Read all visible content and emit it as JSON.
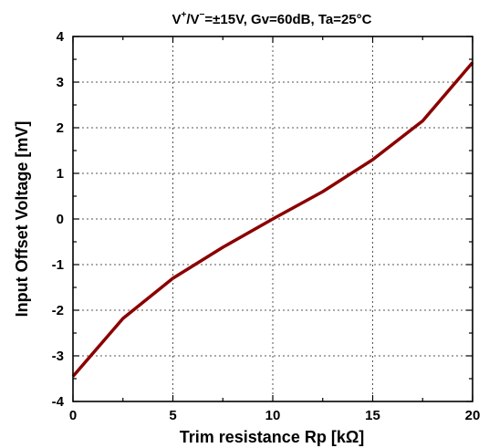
{
  "chart_data": {
    "type": "line",
    "title": {
      "prefix": "V",
      "sup1": "+",
      "middle": "/V",
      "sup2": "−",
      "rest": "=±15V, Gv=60dB, Ta=25°C"
    },
    "xlabel": "Trim resistance Rp [kΩ]",
    "ylabel": "Input Offset Voltage [mV]",
    "xlim": [
      0,
      20
    ],
    "ylim": [
      -4,
      4
    ],
    "x_ticks": [
      0,
      5,
      10,
      15,
      20
    ],
    "x_tick_labels": [
      "0",
      "5",
      "10",
      "15",
      "20"
    ],
    "y_ticks": [
      -4,
      -3,
      -2,
      -1,
      0,
      1,
      2,
      3,
      4
    ],
    "y_tick_labels": [
      "-4",
      "-3",
      "-2",
      "-1",
      "0",
      "1",
      "2",
      "3",
      "4"
    ],
    "x_minor_step": 2.5,
    "y_minor_step": 0.5,
    "grid": true,
    "grid_style": "dotted",
    "series": [
      {
        "color": "#8b0000",
        "x": [
          0,
          2.5,
          5,
          7.5,
          10,
          12.5,
          15,
          17.5,
          20
        ],
        "y": [
          -3.45,
          -2.18,
          -1.3,
          -0.62,
          0.0,
          0.6,
          1.3,
          2.15,
          3.43
        ]
      }
    ]
  }
}
